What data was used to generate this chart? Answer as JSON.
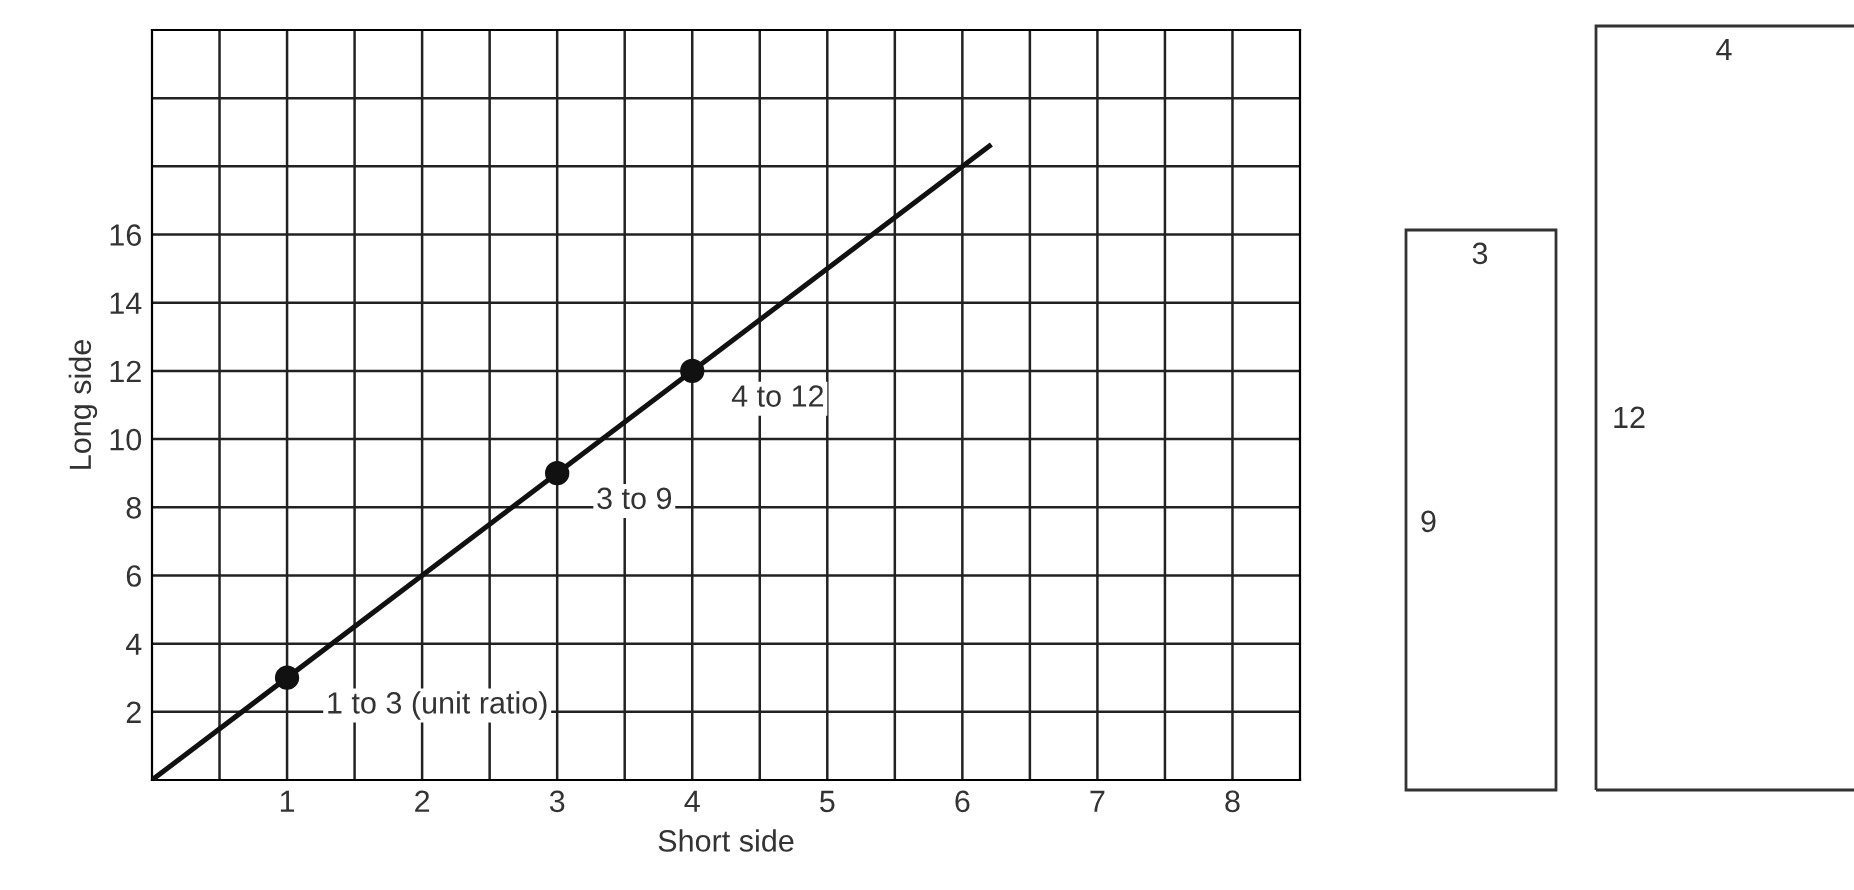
{
  "chart_data": {
    "type": "line",
    "xlabel": "Short side",
    "ylabel": "Long side",
    "series": [
      {
        "x": [
          0,
          6.2
        ],
        "values": [
          0,
          18.6
        ],
        "color": "#111111",
        "marker": "none"
      },
      {
        "type": "scatter",
        "x": [
          1,
          3,
          4
        ],
        "values": [
          3,
          9,
          12
        ],
        "color": "#111111",
        "marker": "circle"
      }
    ],
    "xlim": [
      0,
      8.5
    ],
    "ylim": [
      0,
      22
    ],
    "xticks": [
      {
        "value": 0.5,
        "label": null
      },
      1,
      {
        "value": 1.5,
        "label": null
      },
      2,
      {
        "value": 2.5,
        "label": null
      },
      3,
      {
        "value": 3.5,
        "label": null
      },
      4,
      {
        "value": 4.5,
        "label": null
      },
      5,
      {
        "value": 5.5,
        "label": null
      },
      6,
      {
        "value": 6.5,
        "label": null
      },
      7,
      {
        "value": 7.5,
        "label": null
      },
      8
    ],
    "yticks": [
      2,
      4,
      6,
      8,
      10,
      12,
      14,
      16,
      {
        "value": 18,
        "label": null
      },
      {
        "value": 20,
        "label": null
      }
    ],
    "grid": true,
    "annotations": [
      {
        "text": "1 to 3 (unit ratio)",
        "x": 1,
        "y": 3
      },
      {
        "text": "3 to 9",
        "x": 3,
        "y": 9
      },
      {
        "text": "4 to 12",
        "x": 4,
        "y": 12
      },
      "3",
      "9",
      "4",
      "12"
    ]
  }
}
